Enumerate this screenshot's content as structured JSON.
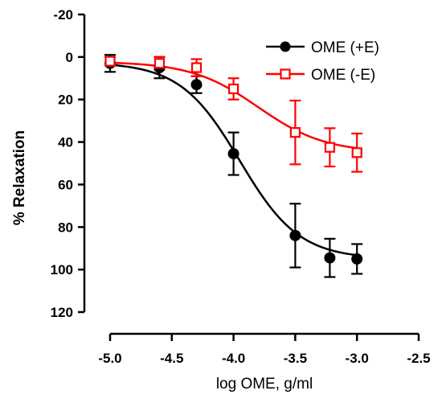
{
  "chart_data": {
    "type": "scatter",
    "title": "",
    "xlabel": "log OME, g/ml",
    "ylabel": "% Relaxation",
    "xlim": [
      -5.0,
      -2.5
    ],
    "ylim": [
      -20,
      120
    ],
    "y_inverted": true,
    "x_ticks": [
      -5.0,
      -4.5,
      -4.0,
      -3.5,
      -3.0,
      -2.5
    ],
    "x_tick_labels": [
      "-5.0",
      "-4.5",
      "-4.0",
      "-3.5",
      "-3.0",
      "-2.5"
    ],
    "y_ticks": [
      -20,
      0,
      20,
      40,
      60,
      80,
      100,
      120
    ],
    "y_tick_labels": [
      "-20",
      "0",
      "20",
      "40",
      "60",
      "80",
      "100",
      "120"
    ],
    "grid": false,
    "legend_position": "top-right",
    "series": [
      {
        "name": "OME (+E)",
        "color": "#000000",
        "marker": "filled-circle",
        "x": [
          -5.0,
          -4.6,
          -4.3,
          -4.0,
          -3.5,
          -3.22,
          -3.0
        ],
        "y": [
          3,
          5,
          13,
          45.5,
          84,
          94.5,
          95
        ],
        "error": [
          4,
          5,
          4,
          10,
          15,
          9,
          7
        ],
        "fit": {
          "bottom": 2.5,
          "top": 95,
          "logEC50": -3.95,
          "hill": 1.8
        }
      },
      {
        "name": "OME (-E)",
        "color": "#ff0000",
        "marker": "open-square",
        "x": [
          -5.0,
          -4.6,
          -4.3,
          -4.0,
          -3.5,
          -3.22,
          -3.0
        ],
        "y": [
          2,
          3,
          5,
          15,
          35.5,
          42.5,
          45
        ],
        "error": [
          2,
          3,
          4,
          5,
          15,
          9,
          9
        ],
        "fit": {
          "bottom": 2.2,
          "top": 45,
          "logEC50": -3.8,
          "hill": 1.6
        }
      }
    ]
  }
}
